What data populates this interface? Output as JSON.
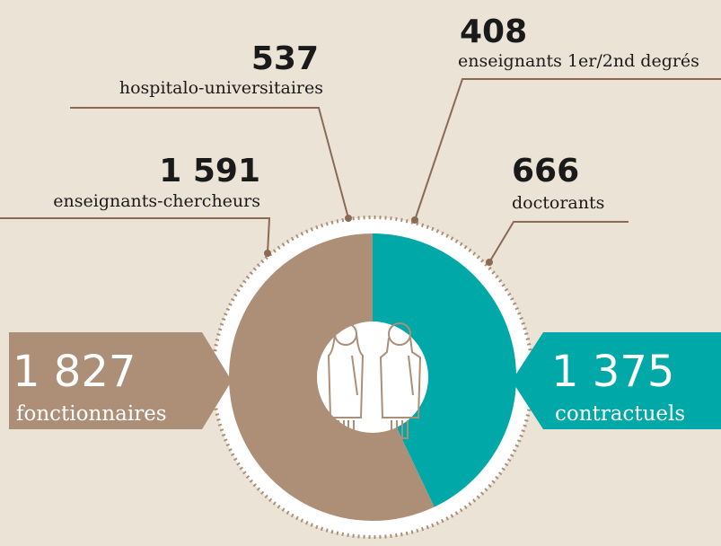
{
  "chart_data": {
    "type": "donut",
    "categories": [
      "fonctionnaires",
      "contractuels"
    ],
    "values": [
      1827,
      1375
    ],
    "value_labels": [
      "1 827",
      "1 375"
    ],
    "colors": [
      "#ad8f78",
      "#00a8a8"
    ],
    "annotations": [
      {
        "value": 1591,
        "value_label": "1 591",
        "label": "enseignants-chercheurs"
      },
      {
        "value": 537,
        "value_label": "537",
        "label": "hospitalo-universitaires"
      },
      {
        "value": 408,
        "value_label": "408",
        "label": "enseignants 1er/2nd degrés"
      },
      {
        "value": 666,
        "value_label": "666",
        "label": "doctorants"
      }
    ]
  }
}
